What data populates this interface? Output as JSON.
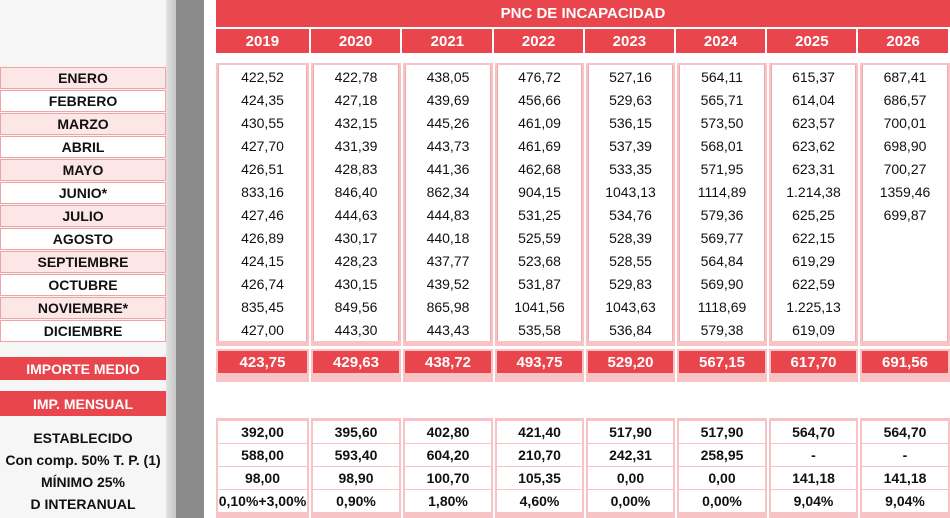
{
  "title": "PNC DE INCAPACIDAD",
  "years": [
    "2019",
    "2020",
    "2021",
    "2022",
    "2023",
    "2024",
    "2025",
    "2026"
  ],
  "months": [
    "ENERO",
    "FEBRERO",
    "MARZO",
    "ABRIL",
    "MAYO",
    "JUNIO*",
    "JULIO",
    "AGOSTO",
    "SEPTIEMBRE",
    "OCTUBRE",
    "NOVIEMBRE*",
    "DICIEMBRE"
  ],
  "columns": [
    [
      "422,52",
      "424,35",
      "430,55",
      "427,70",
      "426,51",
      "833,16",
      "427,46",
      "426,89",
      "424,15",
      "426,74",
      "835,45",
      "427,00"
    ],
    [
      "422,78",
      "427,18",
      "432,15",
      "431,39",
      "428,83",
      "846,40",
      "444,63",
      "430,17",
      "428,23",
      "430,15",
      "849,56",
      "443,30"
    ],
    [
      "438,05",
      "439,69",
      "445,26",
      "443,73",
      "441,36",
      "862,34",
      "444,83",
      "440,18",
      "437,77",
      "439,52",
      "865,98",
      "443,43"
    ],
    [
      "476,72",
      "456,66",
      "461,09",
      "461,69",
      "462,68",
      "904,15",
      "531,25",
      "525,59",
      "523,68",
      "531,87",
      "1041,56",
      "535,58"
    ],
    [
      "527,16",
      "529,63",
      "536,15",
      "537,39",
      "533,35",
      "1043,13",
      "534,76",
      "528,39",
      "528,55",
      "529,83",
      "1043,63",
      "536,84"
    ],
    [
      "564,11",
      "565,71",
      "573,50",
      "568,01",
      "571,95",
      "1114,89",
      "579,36",
      "569,77",
      "564,84",
      "569,90",
      "1118,69",
      "579,38"
    ],
    [
      "615,37",
      "614,04",
      "623,57",
      "623,62",
      "623,31",
      "1.214,38",
      "625,25",
      "622,15",
      "619,29",
      "622,59",
      "1.225,13",
      "619,09"
    ],
    [
      "687,41",
      "686,57",
      "700,01",
      "698,90",
      "700,27",
      "1359,46",
      "699,87",
      "",
      "",
      "",
      "",
      ""
    ]
  ],
  "importe_medio_label": "IMPORTE MEDIO",
  "importe_medio": [
    "423,75",
    "429,63",
    "438,72",
    "493,75",
    "529,20",
    "567,15",
    "617,70",
    "691,56"
  ],
  "imp_mensual_label": "IMP. MENSUAL",
  "bottom_labels": [
    "ESTABLECIDO",
    "Con comp. 50% T. P. (1)",
    "MÍNIMO 25%",
    "D INTERANUAL"
  ],
  "bottom_columns": [
    [
      "392,00",
      "588,00",
      "98,00",
      "0,10%+3,00%"
    ],
    [
      "395,60",
      "593,40",
      "98,90",
      "0,90%"
    ],
    [
      "402,80",
      "604,20",
      "100,70",
      "1,80%"
    ],
    [
      "421,40",
      "210,70",
      "105,35",
      "4,60%"
    ],
    [
      "517,90",
      "242,31",
      "0,00",
      "0,00%"
    ],
    [
      "517,90",
      "258,95",
      "0,00",
      "0,00%"
    ],
    [
      "564,70",
      "-",
      "141,18",
      "9,04%"
    ],
    [
      "564,70",
      "-",
      "141,18",
      "9,04%"
    ]
  ],
  "colors": {
    "header_red": "#e8464c",
    "pink_border": "#f7c3c5",
    "row_pink": "#fde6e6"
  }
}
